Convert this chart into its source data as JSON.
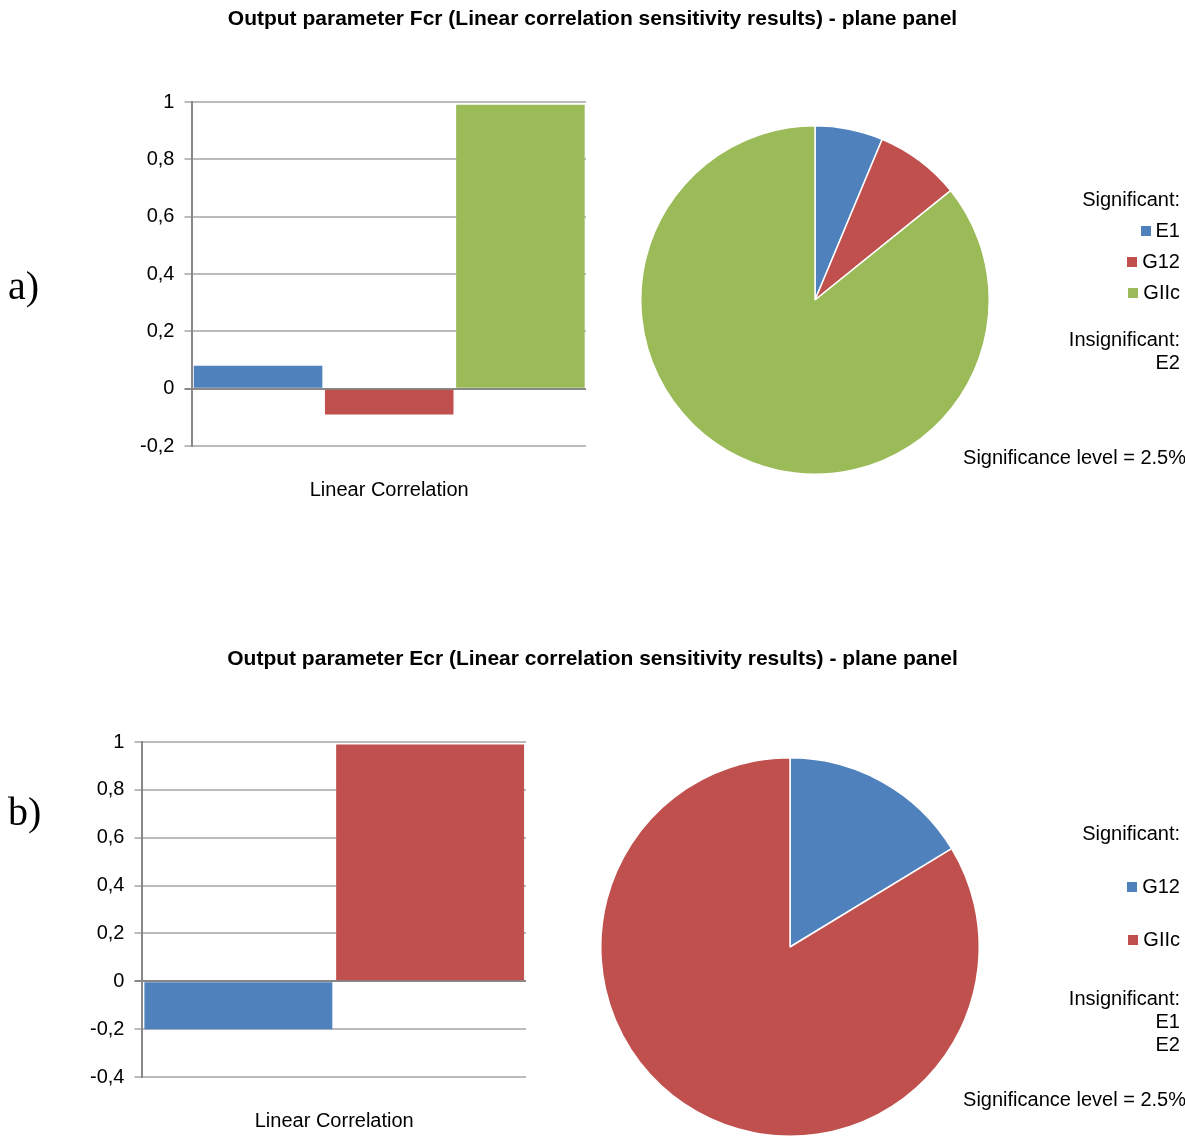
{
  "chart_data": [
    {
      "type": "bar",
      "title": "Output parameter Fcr (Linear correlation sensitivity results) - plane panel",
      "annotations": [
        "a)"
      ],
      "xlabel": "Linear Correlation",
      "categories": [
        null,
        null,
        null
      ],
      "values": [
        0.08,
        -0.09,
        0.99
      ],
      "colors": [
        "#4f81bd",
        "#c0504d",
        "#9bbb59"
      ],
      "ylim": [
        -0.2,
        1
      ],
      "yticks": [
        {
          "value": -0.2,
          "label": "-0,2"
        },
        {
          "value": 0,
          "label": "0"
        },
        {
          "value": 0.2,
          "label": "0,2"
        },
        {
          "value": 0.4,
          "label": "0,4"
        },
        {
          "value": 0.6,
          "label": "0,6"
        },
        {
          "value": 0.8,
          "label": "0,8"
        },
        {
          "value": 1,
          "label": "1"
        }
      ],
      "grid": "y",
      "legend": false
    },
    {
      "type": "pie",
      "legend_title": "Significant:",
      "categories": [
        "E1",
        "G12",
        "GIIc"
      ],
      "values": [
        6.3,
        7.9,
        85.8
      ],
      "colors": [
        "#4f81bd",
        "#c0504d",
        "#9bbb59"
      ],
      "legend": "right",
      "annotations": [
        "Insignificant:\nE2",
        "Significance level = 2.5%"
      ]
    },
    {
      "type": "bar",
      "title": "Output parameter Ecr (Linear correlation sensitivity results) - plane panel",
      "annotations": [
        "b)"
      ],
      "xlabel": "Linear Correlation",
      "categories": [
        null,
        null
      ],
      "values": [
        -0.2,
        0.99
      ],
      "colors": [
        "#4f81bd",
        "#c0504d"
      ],
      "ylim": [
        -0.4,
        1
      ],
      "yticks": [
        {
          "value": -0.4,
          "label": "-0,4"
        },
        {
          "value": -0.2,
          "label": "-0,2"
        },
        {
          "value": 0,
          "label": "0"
        },
        {
          "value": 0.2,
          "label": "0,2"
        },
        {
          "value": 0.4,
          "label": "0,4"
        },
        {
          "value": 0.6,
          "label": "0,6"
        },
        {
          "value": 0.8,
          "label": "0,8"
        },
        {
          "value": 1,
          "label": "1"
        }
      ],
      "grid": "y",
      "legend": false
    },
    {
      "type": "pie",
      "legend_title": "Significant:",
      "categories": [
        "G12",
        "GIIc"
      ],
      "values": [
        16.3,
        83.7
      ],
      "colors": [
        "#4f81bd",
        "#c0504d"
      ],
      "legend": "right",
      "annotations": [
        "Insignificant:\nE1\nE2",
        "Significance level = 2.5%"
      ]
    }
  ]
}
